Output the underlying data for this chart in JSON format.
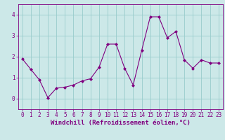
{
  "x": [
    0,
    1,
    2,
    3,
    4,
    5,
    6,
    7,
    8,
    9,
    10,
    11,
    12,
    13,
    14,
    15,
    16,
    17,
    18,
    19,
    20,
    21,
    22,
    23
  ],
  "y": [
    1.9,
    1.4,
    0.9,
    0.05,
    0.5,
    0.55,
    0.65,
    0.85,
    0.95,
    1.5,
    2.6,
    2.6,
    1.45,
    0.65,
    2.3,
    3.9,
    3.9,
    2.9,
    3.2,
    1.85,
    1.45,
    1.85,
    1.7,
    1.7
  ],
  "line_color": "#800080",
  "marker": "D",
  "marker_size": 2,
  "bg_color": "#cce8e8",
  "grid_color": "#99cccc",
  "xlabel": "Windchill (Refroidissement éolien,°C)",
  "xlim": [
    -0.5,
    23.5
  ],
  "ylim": [
    -0.5,
    4.5
  ],
  "yticks": [
    0,
    1,
    2,
    3,
    4
  ],
  "xticks": [
    0,
    1,
    2,
    3,
    4,
    5,
    6,
    7,
    8,
    9,
    10,
    11,
    12,
    13,
    14,
    15,
    16,
    17,
    18,
    19,
    20,
    21,
    22,
    23
  ],
  "tick_fontsize": 5.5,
  "xlabel_fontsize": 6.5,
  "line_width": 0.8
}
